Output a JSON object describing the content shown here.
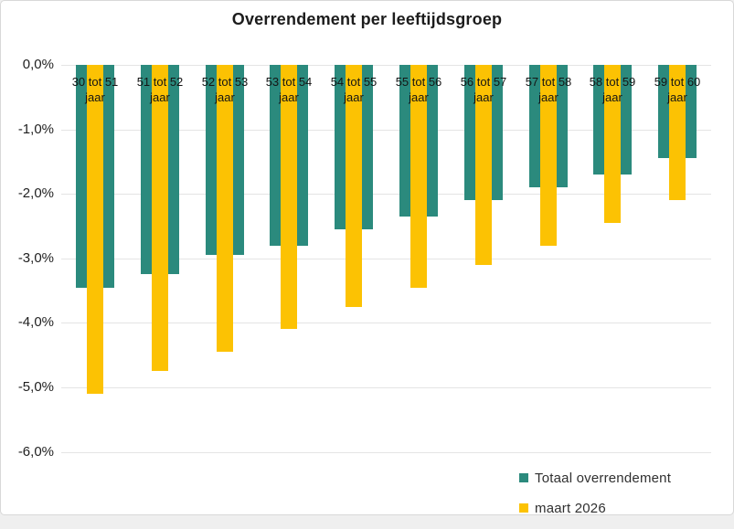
{
  "page": {
    "background_color": "#efefef",
    "card_background": "#ffffff",
    "card_border_color": "#d8d8d8",
    "gridline_color": "#e4e4e4"
  },
  "chart_data": {
    "type": "bar",
    "title": "Overrendement per leeftijdsgroep",
    "categories": [
      "30 tot 51",
      "51 tot 52",
      "52 tot 53",
      "53 tot 54",
      "54 tot 55",
      "55 tot 56",
      "56 tot 57",
      "57 tot 58",
      "58 tot 59",
      "59 tot 60"
    ],
    "category_suffix": "jaar",
    "series": [
      {
        "name": "Totaal overrendement",
        "color": "#2b8a7d",
        "values": [
          -3.45,
          -3.25,
          -2.95,
          -2.8,
          -2.55,
          -2.35,
          -2.1,
          -1.9,
          -1.7,
          -1.45
        ]
      },
      {
        "name": "maart 2026",
        "color": "#fcc203",
        "values": [
          -5.1,
          -4.75,
          -4.45,
          -4.1,
          -3.75,
          -3.45,
          -3.1,
          -2.8,
          -2.45,
          -2.1
        ]
      }
    ],
    "yticks": [
      {
        "value": 0,
        "label": "0,0%"
      },
      {
        "value": -1,
        "label": "-1,0%"
      },
      {
        "value": -2,
        "label": "-2,0%"
      },
      {
        "value": -3,
        "label": "-3,0%"
      },
      {
        "value": -4,
        "label": "-4,0%"
      },
      {
        "value": -5,
        "label": "-5,0%"
      },
      {
        "value": -6,
        "label": "-6,0%"
      }
    ],
    "ylim": [
      -6,
      0
    ],
    "xlabel": "",
    "ylabel": "",
    "grid": true,
    "legend_position": "bottom-right"
  }
}
